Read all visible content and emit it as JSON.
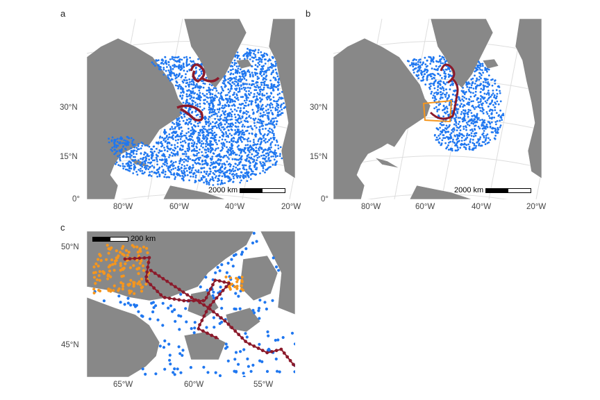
{
  "panels": {
    "a": {
      "letter": "a",
      "lat_ticks": [
        "30°N",
        "15°N",
        "0°"
      ],
      "lon_ticks": [
        "80°W",
        "60°W",
        "40°W",
        "20°W"
      ],
      "scale_label": "2000 km"
    },
    "b": {
      "letter": "b",
      "lat_ticks": [
        "30°N",
        "15°N",
        "0°"
      ],
      "lon_ticks": [
        "80°W",
        "60°W",
        "40°W",
        "20°W"
      ],
      "scale_label": "2000 km"
    },
    "c": {
      "letter": "c",
      "lat_ticks": [
        "50°N",
        "45°N"
      ],
      "lon_ticks": [
        "65°W",
        "60°W",
        "55°W"
      ],
      "scale_label": "200 km"
    }
  },
  "colors": {
    "land": "#888888",
    "ocean": "#ffffff",
    "graticule": "#dddddd",
    "points_blue": "#1f77f0",
    "points_orange": "#f5961e",
    "track_red": "#8b1a2b",
    "box_orange": "#f5961e"
  }
}
